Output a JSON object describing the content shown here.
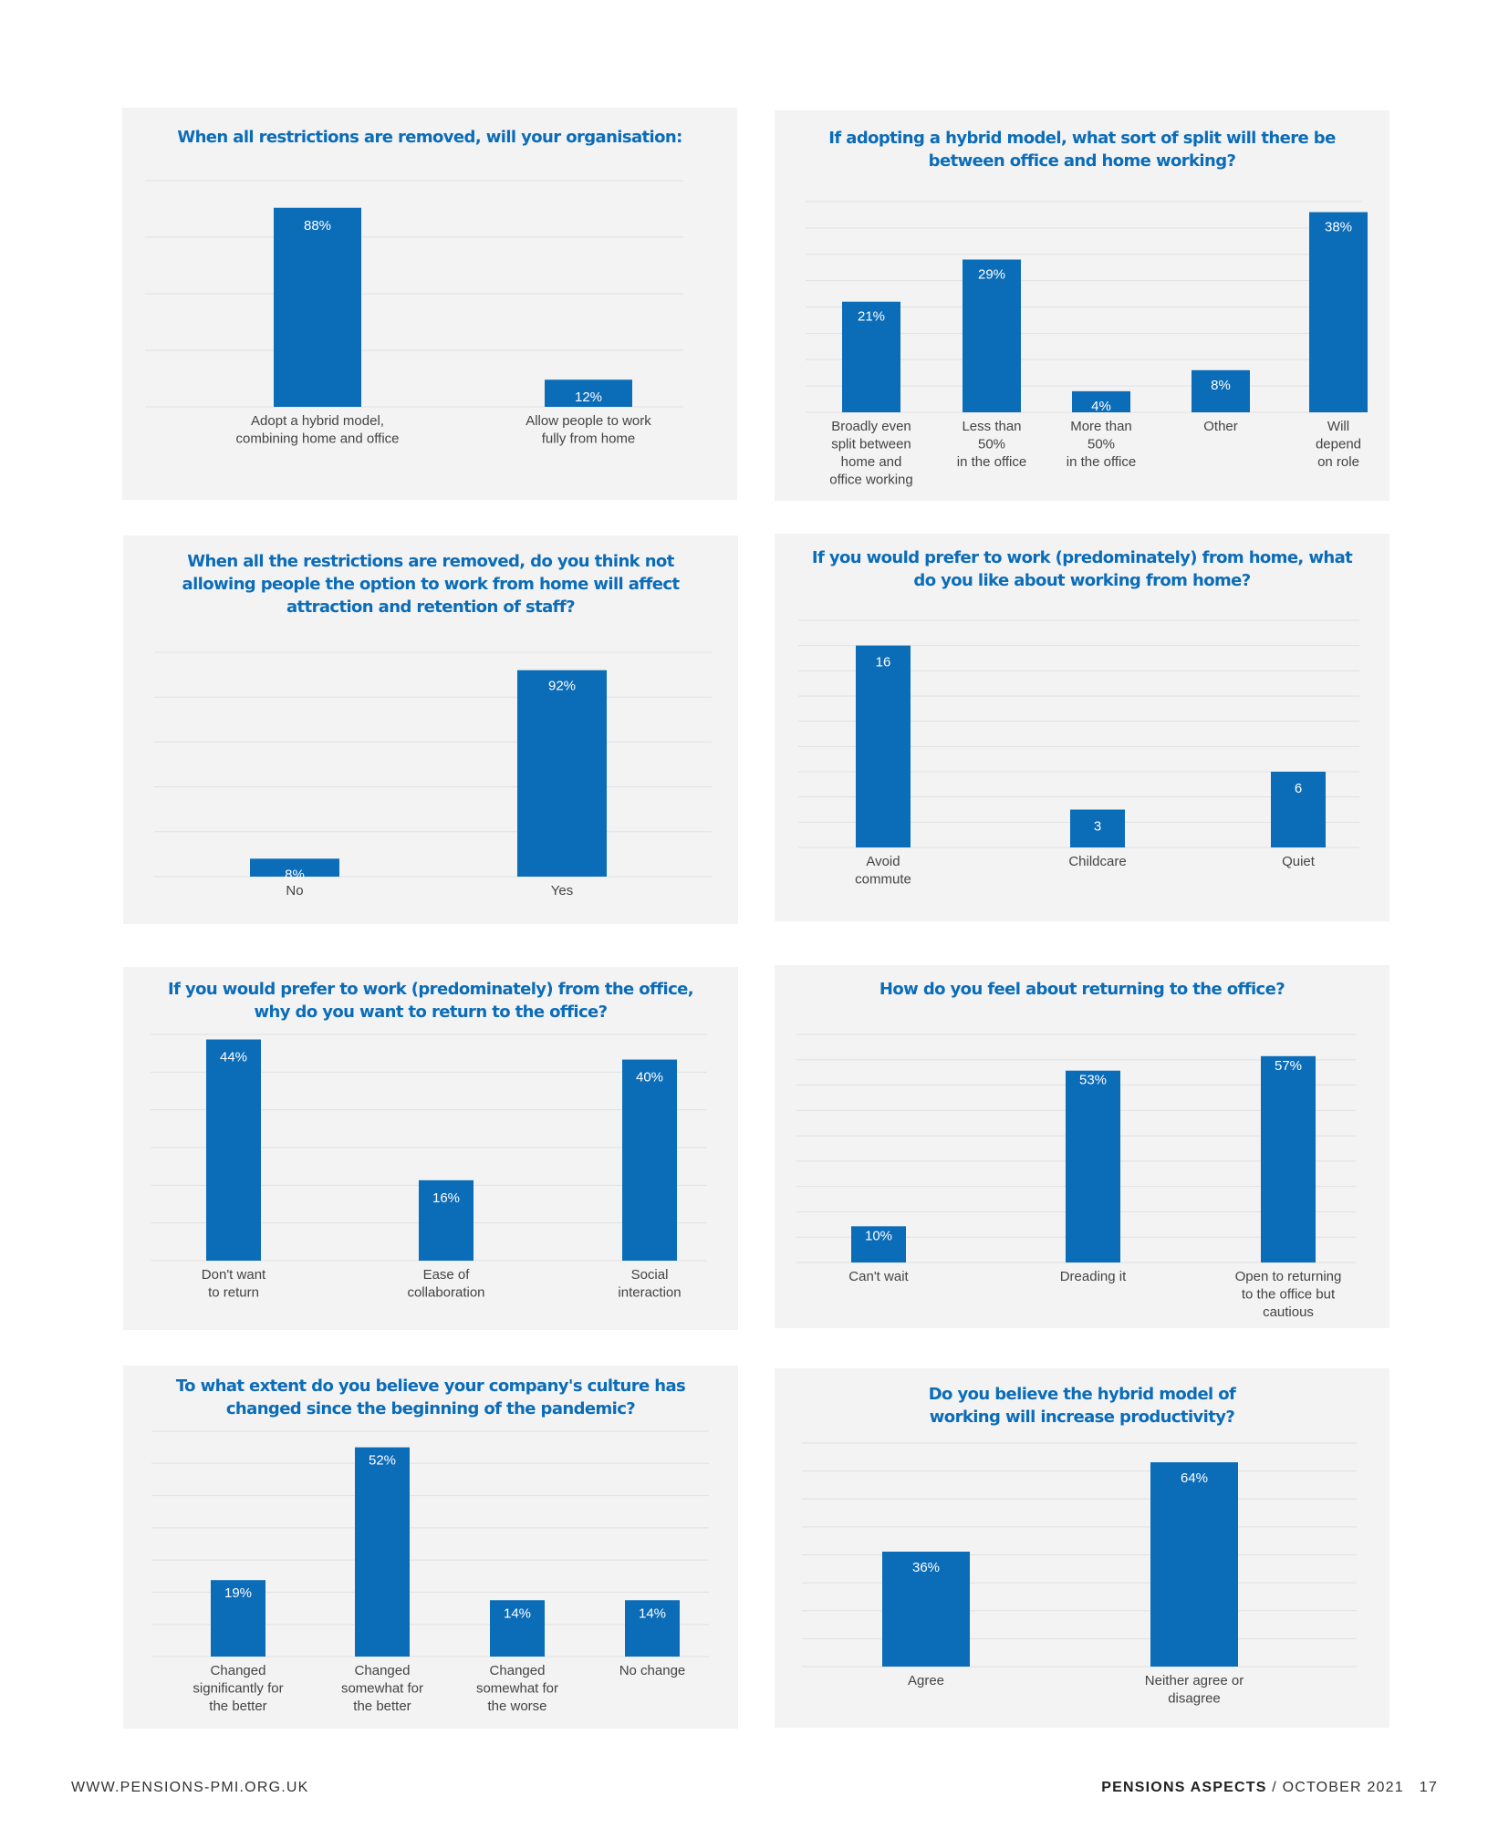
{
  "colors": {
    "bar": "#0b6cb8",
    "panel": "#f3f3f3",
    "title": "#0b6cb8",
    "grid": "#e1e1e1"
  },
  "footer": {
    "website": "WWW.PENSIONS-PMI.ORG.UK",
    "publication": "PENSIONS ASPECTS",
    "separator": "/",
    "date": "OCTOBER 2021",
    "page_number": "17"
  },
  "chart_data": [
    {
      "type": "bar",
      "title": "When all restrictions are removed, will your organisation:",
      "categories": [
        "Adopt a hybrid model,\ncombining home and office",
        "Allow people to work\nfully from home"
      ],
      "values": [
        88,
        12
      ],
      "labels": [
        "88%",
        "12%"
      ],
      "ylim": [
        0,
        100
      ],
      "grid": true,
      "xlabel": "",
      "ylabel": ""
    },
    {
      "type": "bar",
      "title": "If adopting a hybrid model, what sort of split will there be\nbetween office and home working?",
      "categories": [
        "Broadly even\nsplit between\nhome and\noffice working",
        "Less than\n50%\nin the office",
        "More than\n50%\nin the office",
        "Other",
        "Will\ndepend\non role"
      ],
      "values": [
        21,
        29,
        4,
        8,
        38
      ],
      "labels": [
        "21%",
        "29%",
        "4%",
        "8%",
        "38%"
      ],
      "ylim": [
        0,
        40
      ],
      "grid": true,
      "xlabel": "",
      "ylabel": ""
    },
    {
      "type": "bar",
      "title": "When all the restrictions are removed, do you think not\nallowing people the option to work from home will affect\nattraction and retention of staff?",
      "categories": [
        "No",
        "Yes"
      ],
      "values": [
        8,
        92
      ],
      "labels": [
        "8%",
        "92%"
      ],
      "ylim": [
        0,
        100
      ],
      "grid": true,
      "xlabel": "",
      "ylabel": ""
    },
    {
      "type": "bar",
      "title": "If you would prefer to work (predominately) from home, what\ndo you like about working from home?",
      "categories": [
        "Avoid\ncommute",
        "Childcare",
        "Quiet"
      ],
      "values": [
        16,
        3,
        6
      ],
      "labels": [
        "16",
        "3",
        "6"
      ],
      "ylim": [
        0,
        18
      ],
      "grid": true,
      "xlabel": "",
      "ylabel": ""
    },
    {
      "type": "bar",
      "title": "If you would prefer to work (predominately) from the office,\nwhy do you want to return to the office?",
      "categories": [
        "Don't want\nto return",
        "Ease of\ncollaboration",
        "Social\ninteraction"
      ],
      "values": [
        44,
        16,
        40
      ],
      "labels": [
        "44%",
        "16%",
        "40%"
      ],
      "ylim": [
        0,
        45
      ],
      "grid": true,
      "xlabel": "",
      "ylabel": ""
    },
    {
      "type": "bar",
      "title": "How do you feel about returning to the office?",
      "categories": [
        "Can't wait",
        "Dreading it",
        "Open to returning\nto the office but\ncautious"
      ],
      "values": [
        10,
        53,
        57
      ],
      "labels": [
        "10%",
        "53%",
        "57%"
      ],
      "ylim": [
        0,
        63
      ],
      "grid": true,
      "xlabel": "",
      "ylabel": ""
    },
    {
      "type": "bar",
      "title": "To what extent do you believe your company's culture has\nchanged since the beginning of the pandemic?",
      "categories": [
        "Changed\nsignificantly for\nthe better",
        "Changed\nsomewhat for\nthe better",
        "Changed\nsomewhat for\nthe worse",
        "No change"
      ],
      "values": [
        19,
        52,
        14,
        14
      ],
      "labels": [
        "19%",
        "52%",
        "14%",
        "14%"
      ],
      "ylim": [
        0,
        56
      ],
      "grid": true,
      "xlabel": "",
      "ylabel": ""
    },
    {
      "type": "bar",
      "title": "Do you believe the hybrid model of\nworking will increase productivity?",
      "categories": [
        "Agree",
        "Neither agree or\ndisagree"
      ],
      "values": [
        36,
        64
      ],
      "labels": [
        "36%",
        "64%"
      ],
      "ylim": [
        0,
        70
      ],
      "grid": true,
      "xlabel": "",
      "ylabel": ""
    }
  ]
}
